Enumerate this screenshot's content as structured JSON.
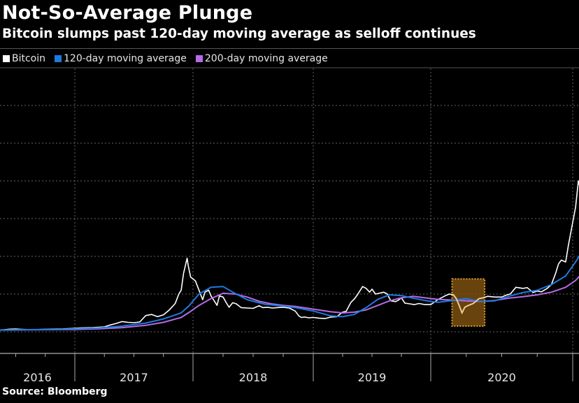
{
  "header": {
    "title": "Not-So-Average Plunge",
    "subtitle": "Bitcoin slumps past 120-day moving average as selloff continues"
  },
  "legend": [
    {
      "label": "Bitcoin",
      "color": "#ffffff"
    },
    {
      "label": "120-day moving average",
      "color": "#1f7ae0"
    },
    {
      "label": "200-day moving average",
      "color": "#b66be6"
    }
  ],
  "source": "Source: Bloomberg",
  "chart_data": {
    "type": "line",
    "title": "Not-So-Average Plunge",
    "subtitle": "Bitcoin slumps past 120-day moving average as selloff continues",
    "xlabel": "",
    "ylabel": "",
    "x_range": [
      2016.0,
      2021.08
    ],
    "ylim": [
      0,
      70000
    ],
    "y_gridlines": [
      0,
      10000,
      20000,
      30000,
      40000,
      50000,
      60000
    ],
    "y_tick_labels_shown": false,
    "x_tick_labels": [
      "2016",
      "2017",
      "2018",
      "2019",
      "2020"
    ],
    "x_year_boundaries": [
      2017,
      2018,
      2019,
      2020,
      2021
    ],
    "grid": true,
    "legend_position": "top-left",
    "highlight": {
      "x_start": 2020.15,
      "x_end": 2020.38,
      "y_low": 1500,
      "y_high": 14000,
      "color": "#7a4f10",
      "border": "#e0a030"
    },
    "series": [
      {
        "name": "Bitcoin",
        "color": "#ffffff",
        "x": [
          2016.0,
          2016.1,
          2016.2,
          2016.3,
          2016.4,
          2016.45,
          2016.5,
          2016.55,
          2016.6,
          2016.7,
          2016.8,
          2016.9,
          2017.0,
          2017.05,
          2017.1,
          2017.15,
          2017.2,
          2017.25,
          2017.3,
          2017.35,
          2017.4,
          2017.45,
          2017.5,
          2017.55,
          2017.6,
          2017.65,
          2017.7,
          2017.75,
          2017.8,
          2017.85,
          2017.88,
          2017.9,
          2017.92,
          2017.95,
          2017.96,
          2017.98,
          2018.0,
          2018.02,
          2018.05,
          2018.08,
          2018.1,
          2018.13,
          2018.15,
          2018.18,
          2018.2,
          2018.22,
          2018.25,
          2018.28,
          2018.3,
          2018.33,
          2018.36,
          2018.4,
          2018.45,
          2018.5,
          2018.55,
          2018.58,
          2018.62,
          2018.66,
          2018.7,
          2018.75,
          2018.8,
          2018.85,
          2018.88,
          2018.9,
          2018.93,
          2018.96,
          2019.0,
          2019.05,
          2019.1,
          2019.15,
          2019.2,
          2019.25,
          2019.28,
          2019.32,
          2019.35,
          2019.38,
          2019.42,
          2019.45,
          2019.48,
          2019.5,
          2019.53,
          2019.56,
          2019.6,
          2019.63,
          2019.66,
          2019.7,
          2019.72,
          2019.75,
          2019.78,
          2019.82,
          2019.86,
          2019.9,
          2019.95,
          2020.0,
          2020.05,
          2020.1,
          2020.13,
          2020.16,
          2020.18,
          2020.2,
          2020.22,
          2020.24,
          2020.26,
          2020.3,
          2020.34,
          2020.37,
          2020.4,
          2020.45,
          2020.5,
          2020.53,
          2020.56,
          2020.6,
          2020.65,
          2020.68,
          2020.72,
          2020.75,
          2020.78,
          2020.82,
          2020.85,
          2020.88,
          2020.9,
          2020.92,
          2020.95,
          2020.97,
          2021.0,
          2021.02,
          2021.04,
          2021.06,
          2021.08
        ],
        "y": [
          430,
          400,
          420,
          450,
          530,
          680,
          720,
          650,
          600,
          610,
          700,
          750,
          900,
          1000,
          1050,
          1100,
          1200,
          1300,
          1800,
          2200,
          2700,
          2500,
          2400,
          2600,
          4300,
          4600,
          4000,
          4500,
          5800,
          7500,
          10000,
          11000,
          15500,
          19500,
          17500,
          14500,
          14000,
          13500,
          11000,
          8500,
          10500,
          11000,
          9500,
          8000,
          7000,
          9500,
          9200,
          7500,
          6500,
          7700,
          7400,
          6400,
          6300,
          6200,
          6900,
          6400,
          6500,
          6300,
          6400,
          6500,
          6300,
          5500,
          4200,
          3800,
          3900,
          3700,
          3800,
          3600,
          3500,
          3900,
          4000,
          5200,
          5400,
          7800,
          8700,
          10000,
          12000,
          11500,
          10500,
          11300,
          10000,
          10200,
          10500,
          10000,
          8200,
          8000,
          8300,
          9000,
          7600,
          7400,
          7200,
          7500,
          7200,
          7200,
          8500,
          9500,
          10000,
          9800,
          8800,
          7000,
          5000,
          6500,
          6900,
          7500,
          8800,
          9000,
          9400,
          9200,
          9200,
          9700,
          10000,
          11800,
          11500,
          11700,
          10400,
          10800,
          10600,
          11500,
          12500,
          15500,
          18000,
          19000,
          18500,
          23000,
          29000,
          33000,
          40000,
          37000,
          38000
        ]
      },
      {
        "name": "120-day moving average",
        "color": "#1f7ae0",
        "x": [
          2016.0,
          2016.3,
          2016.6,
          2016.9,
          2017.0,
          2017.2,
          2017.4,
          2017.6,
          2017.75,
          2017.9,
          2017.97,
          2018.05,
          2018.15,
          2018.25,
          2018.33,
          2018.45,
          2018.6,
          2018.75,
          2018.85,
          2019.0,
          2019.15,
          2019.25,
          2019.35,
          2019.45,
          2019.55,
          2019.65,
          2019.75,
          2019.85,
          2019.95,
          2020.05,
          2020.15,
          2020.25,
          2020.35,
          2020.45,
          2020.55,
          2020.65,
          2020.75,
          2020.85,
          2020.95,
          2021.02,
          2021.08
        ],
        "y": [
          420,
          450,
          550,
          650,
          750,
          1000,
          1500,
          2300,
          3400,
          5000,
          7000,
          10000,
          11800,
          12000,
          10500,
          8500,
          7300,
          6800,
          6400,
          5500,
          4200,
          4000,
          4600,
          6400,
          8600,
          9800,
          9600,
          8900,
          8300,
          7800,
          8300,
          8800,
          8000,
          8200,
          9400,
          10400,
          11000,
          12500,
          14800,
          18500,
          22000
        ]
      },
      {
        "name": "200-day moving average",
        "color": "#b66be6",
        "x": [
          2016.0,
          2016.3,
          2016.6,
          2016.9,
          2017.0,
          2017.2,
          2017.4,
          2017.6,
          2017.75,
          2017.9,
          2017.97,
          2018.05,
          2018.15,
          2018.25,
          2018.35,
          2018.45,
          2018.55,
          2018.65,
          2018.75,
          2018.85,
          2019.0,
          2019.15,
          2019.25,
          2019.35,
          2019.45,
          2019.55,
          2019.65,
          2019.75,
          2019.85,
          2019.95,
          2020.05,
          2020.15,
          2020.25,
          2020.35,
          2020.45,
          2020.55,
          2020.65,
          2020.75,
          2020.85,
          2020.95,
          2021.02,
          2021.08
        ],
        "y": [
          400,
          420,
          500,
          580,
          620,
          800,
          1100,
          1700,
          2500,
          3800,
          5200,
          7000,
          8800,
          10200,
          10000,
          9200,
          8100,
          7400,
          7000,
          6700,
          6000,
          5300,
          5000,
          5200,
          5800,
          7000,
          8200,
          9000,
          9400,
          9000,
          8600,
          8400,
          8200,
          8000,
          8300,
          8900,
          9300,
          9800,
          10500,
          11800,
          13600,
          16000
        ]
      }
    ]
  }
}
